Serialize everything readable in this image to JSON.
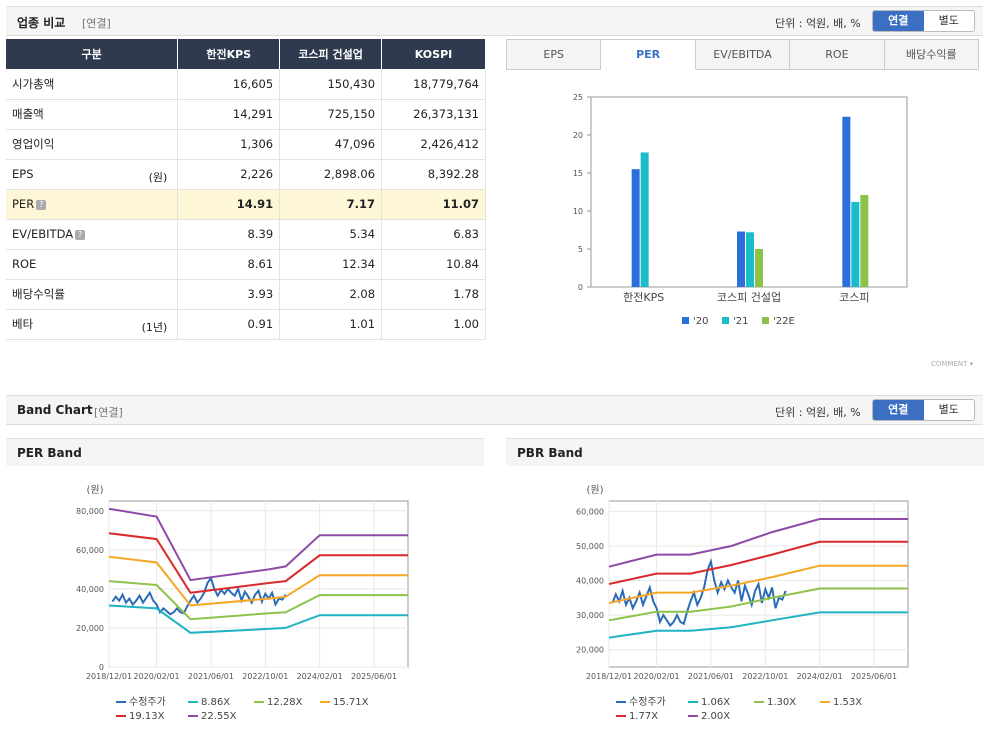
{
  "compare": {
    "title": "업종 비교",
    "basis": "[연결]",
    "unit": "단위 : 억원, 배, %",
    "toggle_on": "연결",
    "toggle_off": "별도",
    "headers": [
      "구분",
      "한전KPS",
      "코스피 건설업",
      "KOSPI"
    ],
    "rows": [
      {
        "label": "시가총액",
        "unit": "",
        "help": false,
        "values": [
          "16,605",
          "150,430",
          "18,779,764"
        ]
      },
      {
        "label": "매출액",
        "unit": "",
        "help": false,
        "values": [
          "14,291",
          "725,150",
          "26,373,131"
        ]
      },
      {
        "label": "영업이익",
        "unit": "",
        "help": false,
        "values": [
          "1,306",
          "47,096",
          "2,426,412"
        ]
      },
      {
        "label": "EPS",
        "unit": "(원)",
        "help": false,
        "values": [
          "2,226",
          "2,898.06",
          "8,392.28"
        ]
      },
      {
        "label": "PER",
        "unit": "",
        "help": true,
        "values": [
          "14.91",
          "7.17",
          "11.07"
        ]
      },
      {
        "label": "EV/EBITDA",
        "unit": "",
        "help": true,
        "values": [
          "8.39",
          "5.34",
          "6.83"
        ]
      },
      {
        "label": "ROE",
        "unit": "",
        "help": false,
        "values": [
          "8.61",
          "12.34",
          "10.84"
        ]
      },
      {
        "label": "배당수익률",
        "unit": "",
        "help": false,
        "values": [
          "3.93",
          "2.08",
          "1.78"
        ]
      },
      {
        "label": "베타",
        "unit": "(1년)",
        "help": false,
        "values": [
          "0.91",
          "1.01",
          "1.00"
        ]
      }
    ],
    "help_glyph": "?",
    "tabs": [
      "EPS",
      "PER",
      "EV/EBITDA",
      "ROE",
      "배당수익률"
    ],
    "active_tab": "PER",
    "comment_label": "COMMENT"
  },
  "band": {
    "title": "Band Chart",
    "basis": "[연결]",
    "unit": "단위 : 억원, 배, %",
    "toggle_on": "연결",
    "toggle_off": "별도",
    "per_title": "PER Band",
    "pbr_title": "PBR Band"
  },
  "colors": {
    "header_bg": "#2f3a4e",
    "accent": "#3b6fc2",
    "highlight_row": "#fdf7d8",
    "price": "#2b6cb8",
    "bands": [
      "#1fb3c4",
      "#8ec24a",
      "#f5a623",
      "#d9292b",
      "#8e4aa8"
    ],
    "bar_20": "#2a6fdc",
    "bar_21": "#1bbccc",
    "bar_22": "#8bc34a"
  },
  "chart_data": [
    {
      "type": "bar",
      "categories": [
        "한전KPS",
        "코스피 건설업",
        "코스피"
      ],
      "series": [
        {
          "name": "'20",
          "values": [
            15.5,
            7.3,
            22.4
          ]
        },
        {
          "name": "'21",
          "values": [
            17.7,
            7.2,
            11.2
          ]
        },
        {
          "name": "'22E",
          "values": [
            null,
            5.0,
            12.1
          ]
        }
      ],
      "yticks": [
        "0",
        "5",
        "10",
        "15",
        "20",
        "25"
      ],
      "ylim": [
        0,
        25
      ]
    },
    {
      "type": "line",
      "title": "PER Band",
      "ylabel": "(원)",
      "ylim": [
        0,
        85000
      ],
      "yticks": [
        "0",
        "20,000",
        "40,000",
        "60,000",
        "80,000"
      ],
      "ytick_values": [
        0,
        20000,
        40000,
        60000,
        80000
      ],
      "xticks": [
        "2018/12/01",
        "2020/02/01",
        "2021/06/01",
        "2022/10/01",
        "2024/02/01",
        "2025/06/01"
      ],
      "x_range": [
        "2018-12",
        "2026-04"
      ],
      "series": [
        {
          "name": "수정주가",
          "points": [
            [
              "2019-01",
              33500
            ],
            [
              "2019-02",
              36000
            ],
            [
              "2019-03",
              34000
            ],
            [
              "2019-04",
              37000
            ],
            [
              "2019-05",
              33000
            ],
            [
              "2019-06",
              35000
            ],
            [
              "2019-07",
              32000
            ],
            [
              "2019-08",
              34000
            ],
            [
              "2019-09",
              36500
            ],
            [
              "2019-10",
              33000
            ],
            [
              "2019-11",
              35500
            ],
            [
              "2019-12",
              38000
            ],
            [
              "2020-01",
              34000
            ],
            [
              "2020-02",
              32000
            ],
            [
              "2020-03",
              28000
            ],
            [
              "2020-04",
              30000
            ],
            [
              "2020-05",
              28500
            ],
            [
              "2020-06",
              27000
            ],
            [
              "2020-07",
              28000
            ],
            [
              "2020-08",
              30000
            ],
            [
              "2020-09",
              28000
            ],
            [
              "2020-10",
              27500
            ],
            [
              "2020-11",
              31000
            ],
            [
              "2020-12",
              34000
            ],
            [
              "2021-01",
              36500
            ],
            [
              "2021-02",
              33000
            ],
            [
              "2021-03",
              35000
            ],
            [
              "2021-04",
              38000
            ],
            [
              "2021-05",
              43000
            ],
            [
              "2021-06",
              45500
            ],
            [
              "2021-07",
              40000
            ],
            [
              "2021-08",
              36500
            ],
            [
              "2021-09",
              39500
            ],
            [
              "2021-10",
              37500
            ],
            [
              "2021-11",
              40000
            ],
            [
              "2021-12",
              38000
            ],
            [
              "2022-01",
              36500
            ],
            [
              "2022-02",
              40000
            ],
            [
              "2022-03",
              34000
            ],
            [
              "2022-04",
              38500
            ],
            [
              "2022-05",
              36000
            ],
            [
              "2022-06",
              33000
            ],
            [
              "2022-07",
              37000
            ],
            [
              "2022-08",
              39000
            ],
            [
              "2022-09",
              33500
            ],
            [
              "2022-10",
              37500
            ],
            [
              "2022-11",
              35000
            ],
            [
              "2022-12",
              38000
            ],
            [
              "2023-01",
              32000
            ],
            [
              "2023-02",
              35000
            ],
            [
              "2023-03",
              34500
            ],
            [
              "2023-04",
              37000
            ]
          ]
        },
        {
          "name": "8.86X",
          "points": [
            [
              "2018-12",
              31500
            ],
            [
              "2020-02",
              30000
            ],
            [
              "2020-12",
              17500
            ],
            [
              "2022-11",
              19500
            ],
            [
              "2023-04",
              20000
            ],
            [
              "2024-02",
              26500
            ],
            [
              "2026-04",
              26500
            ]
          ]
        },
        {
          "name": "12.28X",
          "points": [
            [
              "2018-12",
              44000
            ],
            [
              "2020-02",
              42000
            ],
            [
              "2020-12",
              24500
            ],
            [
              "2022-11",
              27500
            ],
            [
              "2023-04",
              28000
            ],
            [
              "2024-02",
              36800
            ],
            [
              "2026-04",
              36800
            ]
          ]
        },
        {
          "name": "15.71X",
          "points": [
            [
              "2018-12",
              56500
            ],
            [
              "2020-02",
              53500
            ],
            [
              "2020-12",
              31500
            ],
            [
              "2022-11",
              35000
            ],
            [
              "2023-04",
              36000
            ],
            [
              "2024-02",
              47000
            ],
            [
              "2026-04",
              47000
            ]
          ]
        },
        {
          "name": "19.13X",
          "points": [
            [
              "2018-12",
              68500
            ],
            [
              "2020-02",
              65500
            ],
            [
              "2020-12",
              38000
            ],
            [
              "2022-11",
              43000
            ],
            [
              "2023-04",
              44000
            ],
            [
              "2024-02",
              57200
            ],
            [
              "2026-04",
              57200
            ]
          ]
        },
        {
          "name": "22.55X",
          "points": [
            [
              "2018-12",
              81000
            ],
            [
              "2020-02",
              77000
            ],
            [
              "2020-12",
              44500
            ],
            [
              "2022-11",
              50000
            ],
            [
              "2023-04",
              51500
            ],
            [
              "2024-02",
              67500
            ],
            [
              "2026-04",
              67500
            ]
          ]
        }
      ]
    },
    {
      "type": "line",
      "title": "PBR Band",
      "ylabel": "(원)",
      "ylim": [
        15000,
        63000
      ],
      "yticks": [
        "20,000",
        "30,000",
        "40,000",
        "50,000",
        "60,000"
      ],
      "ytick_values": [
        20000,
        30000,
        40000,
        50000,
        60000
      ],
      "xticks": [
        "2018/12/01",
        "2020/02/01",
        "2021/06/01",
        "2022/10/01",
        "2024/02/01",
        "2025/06/01"
      ],
      "x_range": [
        "2018-12",
        "2026-04"
      ],
      "series": [
        {
          "name": "수정주가",
          "points": [
            [
              "2019-01",
              33500
            ],
            [
              "2019-02",
              36000
            ],
            [
              "2019-03",
              34000
            ],
            [
              "2019-04",
              37000
            ],
            [
              "2019-05",
              33000
            ],
            [
              "2019-06",
              35000
            ],
            [
              "2019-07",
              32000
            ],
            [
              "2019-08",
              34000
            ],
            [
              "2019-09",
              36500
            ],
            [
              "2019-10",
              33000
            ],
            [
              "2019-11",
              35500
            ],
            [
              "2019-12",
              38000
            ],
            [
              "2020-01",
              34000
            ],
            [
              "2020-02",
              32000
            ],
            [
              "2020-03",
              28000
            ],
            [
              "2020-04",
              30000
            ],
            [
              "2020-05",
              28500
            ],
            [
              "2020-06",
              27000
            ],
            [
              "2020-07",
              28000
            ],
            [
              "2020-08",
              30000
            ],
            [
              "2020-09",
              28000
            ],
            [
              "2020-10",
              27500
            ],
            [
              "2020-11",
              31000
            ],
            [
              "2020-12",
              34000
            ],
            [
              "2021-01",
              36500
            ],
            [
              "2021-02",
              33000
            ],
            [
              "2021-03",
              35000
            ],
            [
              "2021-04",
              38000
            ],
            [
              "2021-05",
              43000
            ],
            [
              "2021-06",
              45500
            ],
            [
              "2021-07",
              40000
            ],
            [
              "2021-08",
              36500
            ],
            [
              "2021-09",
              39500
            ],
            [
              "2021-10",
              37500
            ],
            [
              "2021-11",
              40000
            ],
            [
              "2021-12",
              38000
            ],
            [
              "2022-01",
              36500
            ],
            [
              "2022-02",
              40000
            ],
            [
              "2022-03",
              34000
            ],
            [
              "2022-04",
              38500
            ],
            [
              "2022-05",
              36000
            ],
            [
              "2022-06",
              33000
            ],
            [
              "2022-07",
              37000
            ],
            [
              "2022-08",
              39000
            ],
            [
              "2022-09",
              33500
            ],
            [
              "2022-10",
              37500
            ],
            [
              "2022-11",
              35000
            ],
            [
              "2022-12",
              38000
            ],
            [
              "2023-01",
              32000
            ],
            [
              "2023-02",
              35000
            ],
            [
              "2023-03",
              34500
            ],
            [
              "2023-04",
              37000
            ]
          ]
        },
        {
          "name": "1.06X",
          "points": [
            [
              "2018-12",
              23500
            ],
            [
              "2020-02",
              25500
            ],
            [
              "2020-12",
              25500
            ],
            [
              "2021-12",
              26500
            ],
            [
              "2022-12",
              28500
            ],
            [
              "2024-02",
              30800
            ],
            [
              "2026-04",
              30800
            ]
          ]
        },
        {
          "name": "1.30X",
          "points": [
            [
              "2018-12",
              28500
            ],
            [
              "2020-02",
              31000
            ],
            [
              "2020-12",
              31000
            ],
            [
              "2021-12",
              32500
            ],
            [
              "2022-12",
              35000
            ],
            [
              "2024-02",
              37700
            ],
            [
              "2026-04",
              37700
            ]
          ]
        },
        {
          "name": "1.53X",
          "points": [
            [
              "2018-12",
              33500
            ],
            [
              "2020-02",
              36500
            ],
            [
              "2020-12",
              36500
            ],
            [
              "2021-12",
              38500
            ],
            [
              "2022-12",
              41000
            ],
            [
              "2024-02",
              44300
            ],
            [
              "2026-04",
              44300
            ]
          ]
        },
        {
          "name": "1.77X",
          "points": [
            [
              "2018-12",
              39000
            ],
            [
              "2020-02",
              42000
            ],
            [
              "2020-12",
              42000
            ],
            [
              "2021-12",
              44500
            ],
            [
              "2022-12",
              47500
            ],
            [
              "2024-02",
              51200
            ],
            [
              "2026-04",
              51200
            ]
          ]
        },
        {
          "name": "2.00X",
          "points": [
            [
              "2018-12",
              44000
            ],
            [
              "2020-02",
              47500
            ],
            [
              "2020-12",
              47500
            ],
            [
              "2021-12",
              50000
            ],
            [
              "2022-12",
              54000
            ],
            [
              "2024-02",
              57800
            ],
            [
              "2026-04",
              57800
            ]
          ]
        }
      ]
    }
  ]
}
